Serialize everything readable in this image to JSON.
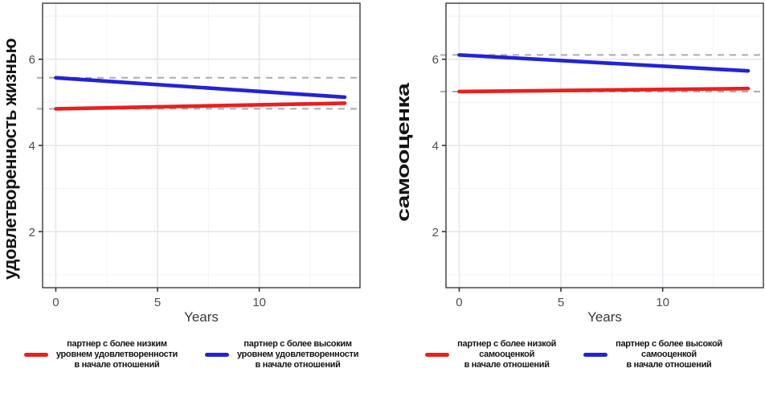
{
  "colors": {
    "red": "#e8201e",
    "blue": "#2323d6",
    "dashed_ref": "#adabaf",
    "axis_text": "#4d4d4d",
    "axis_title": "#141414",
    "xlabel_text": "#383838",
    "panel_border": "#474747",
    "tick_mark": "#333333",
    "grid_major": "#e7e4ee",
    "grid_minor": "#f3f1f7",
    "panel_bg": "#ffffff"
  },
  "chart_data": [
    {
      "type": "line",
      "title": "",
      "ylabel": "удовлетворенность жизнью",
      "xlabel": "Years",
      "xticks": [
        0,
        5,
        10
      ],
      "yticks": [
        2,
        4,
        6
      ],
      "xlim": [
        -0.65,
        14.95
      ],
      "ylim": [
        0.7,
        7.3
      ],
      "grid": {
        "major_x": [
          0,
          5,
          10
        ],
        "minor_x": [
          2.5,
          7.5,
          12.5
        ],
        "major_y": [
          2,
          4,
          6
        ],
        "minor_y": [
          1,
          3,
          5,
          7
        ]
      },
      "x": [
        0,
        14.2
      ],
      "legend_position": "bottom",
      "series": [
        {
          "name": "lower-initial-satisfaction",
          "color": "#e8201e",
          "values": [
            4.85,
            4.98
          ],
          "dashed_reference": 4.85,
          "label_lines": [
            "партнер с более низким",
            "уровнем удовлетворенности",
            "в начале отношений"
          ]
        },
        {
          "name": "higher-initial-satisfaction",
          "color": "#2323d6",
          "values": [
            5.57,
            5.12
          ],
          "dashed_reference": 5.57,
          "label_lines": [
            "партнер с более высоким",
            "уровнем удовлетворенности",
            "в начале отношений"
          ]
        }
      ]
    },
    {
      "type": "line",
      "title": "",
      "ylabel": "самооценка",
      "xlabel": "Years",
      "xticks": [
        0,
        5,
        10
      ],
      "yticks": [
        2,
        4,
        6
      ],
      "xlim": [
        -0.65,
        14.95
      ],
      "ylim": [
        0.7,
        7.3
      ],
      "grid": {
        "major_x": [
          0,
          5,
          10
        ],
        "minor_x": [
          2.5,
          7.5,
          12.5
        ],
        "major_y": [
          2,
          4,
          6
        ],
        "minor_y": [
          1,
          3,
          5,
          7
        ]
      },
      "x": [
        0,
        14.2
      ],
      "legend_position": "bottom",
      "series": [
        {
          "name": "lower-initial-selfesteem",
          "color": "#e8201e",
          "values": [
            5.25,
            5.32
          ],
          "dashed_reference": 5.25,
          "label_lines": [
            "партнер с более низкой",
            "самооценкой",
            "в начале отношений"
          ]
        },
        {
          "name": "higher-initial-selfesteem",
          "color": "#2323d6",
          "values": [
            6.1,
            5.73
          ],
          "dashed_reference": 6.1,
          "label_lines": [
            "партнер с более высокой",
            "самооценкой",
            "в начале отношений"
          ]
        }
      ]
    }
  ]
}
